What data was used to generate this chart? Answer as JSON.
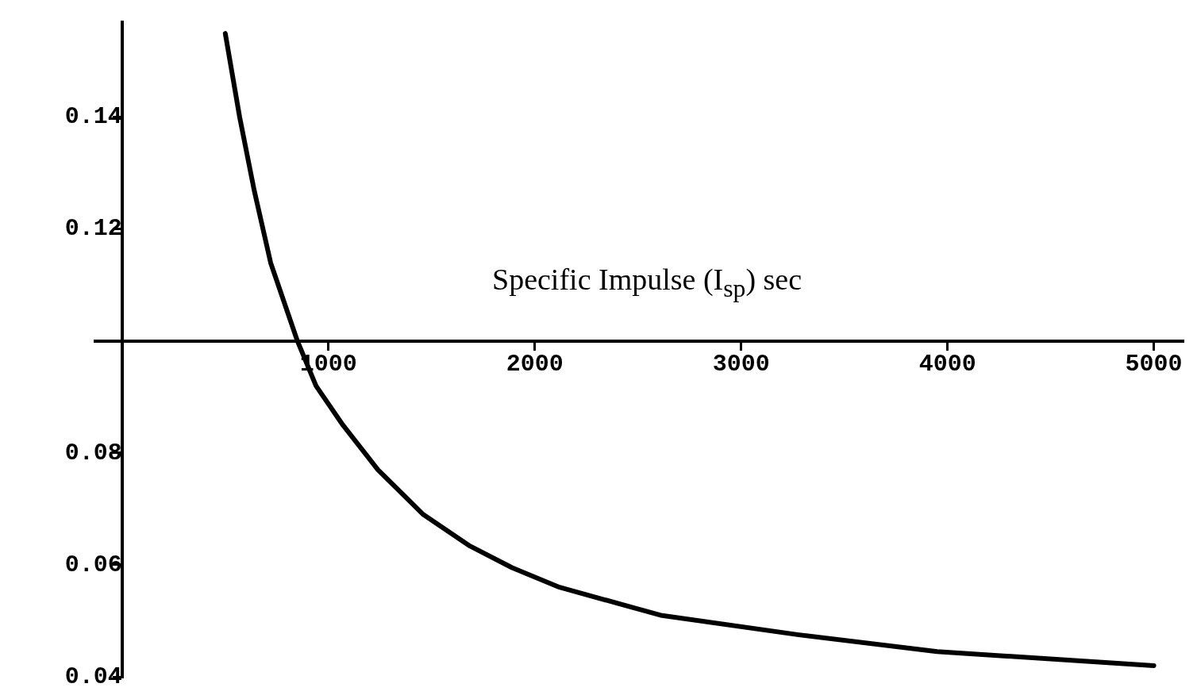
{
  "chart_data": {
    "type": "line",
    "xlabel": "Specific Impulse (I$_{sp}$) sec",
    "x": [
      500,
      570,
      640,
      720,
      850,
      940,
      1070,
      1240,
      1460,
      1680,
      1890,
      2120,
      2610,
      3280,
      3950,
      5000
    ],
    "series": [
      {
        "color": "#000000",
        "values": [
          0.155,
          0.14,
          0.127,
          0.114,
          0.1,
          0.092,
          0.085,
          0.077,
          0.069,
          0.0635,
          0.0595,
          0.056,
          0.051,
          0.0475,
          0.0445,
          0.042
        ]
      }
    ],
    "xlim": [
      -130,
      5140
    ],
    "ylim": [
      0.04,
      0.157
    ],
    "xticks": [
      1000,
      2000,
      3000,
      4000,
      5000
    ],
    "yticks": [
      0.04,
      0.06,
      0.08,
      0.12,
      0.14
    ],
    "marker": "none",
    "line_style": "solid"
  }
}
